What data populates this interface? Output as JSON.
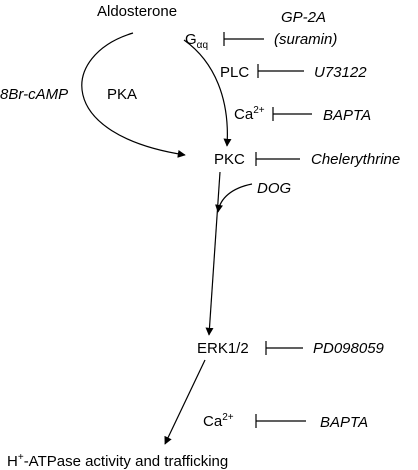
{
  "nodes": {
    "aldosterone": "Aldosterone",
    "gaq_main": "G",
    "gaq_sub": "αq",
    "plc": "PLC",
    "ca1_main": "Ca",
    "ca1_sup": "2+",
    "pka": "PKA",
    "pkc": "PKC",
    "erk": "ERK1/2",
    "ca2_main": "Ca",
    "ca2_sup": "2+",
    "hatp_h": "H",
    "hatp_sup": "+",
    "hatp_rest": "-ATPase activity and trafficking"
  },
  "modulators": {
    "gp2a": "GP-2A",
    "suramin": "(suramin)",
    "u73122": "U73122",
    "bapta1": "BAPTA",
    "camp": "8Br-cAMP",
    "chelerythrine": "Chelerythrine",
    "dog": "DOG",
    "pd098059": "PD098059",
    "bapta2": "BAPTA"
  },
  "colors": {
    "ink": "#000000",
    "background": "#ffffff"
  }
}
